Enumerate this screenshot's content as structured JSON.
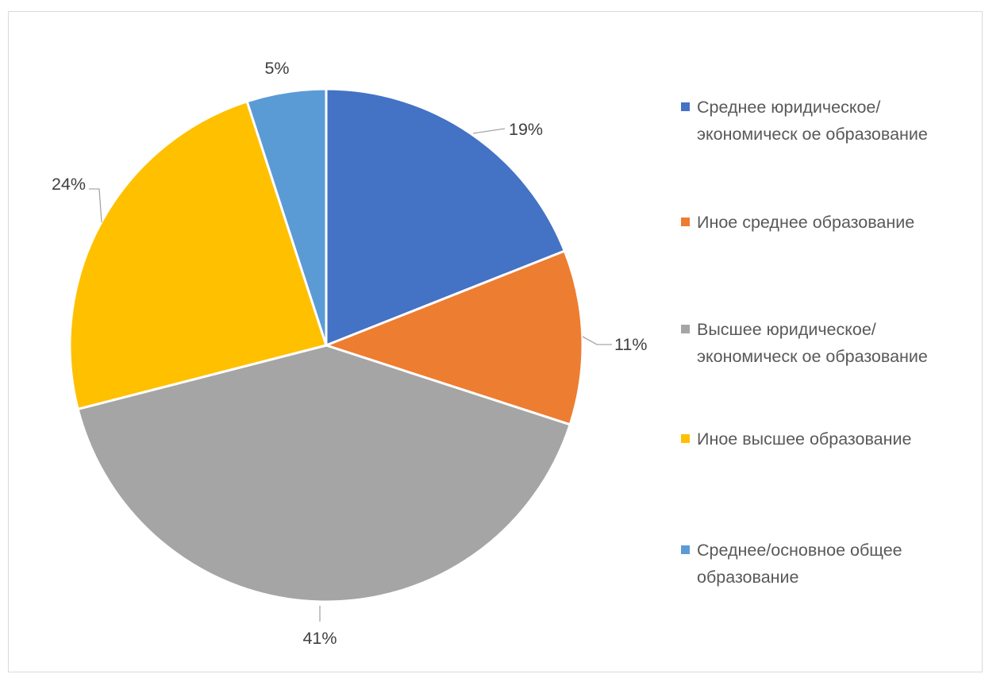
{
  "chart_data": {
    "type": "pie",
    "slices": [
      {
        "label": "Среднее юридическое/экономическое образование",
        "value": 19,
        "display": "19%",
        "color": "#4472C4"
      },
      {
        "label": "Иное среднее образование",
        "value": 11,
        "display": "11%",
        "color": "#ED7D31"
      },
      {
        "label": "Высшее юридическое/экономическое образование",
        "value": 41,
        "display": "41%",
        "color": "#A5A5A5"
      },
      {
        "label": "Иное высшее образование",
        "value": 24,
        "display": "24%",
        "color": "#FFC000"
      },
      {
        "label": "Среднее/основное общее образование",
        "value": 5,
        "display": "5%",
        "color": "#5B9BD5"
      }
    ],
    "legend_position": "right",
    "legend": [
      "Среднее юридическое/экономическ ое образование",
      "Иное среднее образование",
      "Высшее юридическое/экономическ ое образование",
      "Иное высшее образование",
      "Среднее/основное общее образование"
    ]
  }
}
